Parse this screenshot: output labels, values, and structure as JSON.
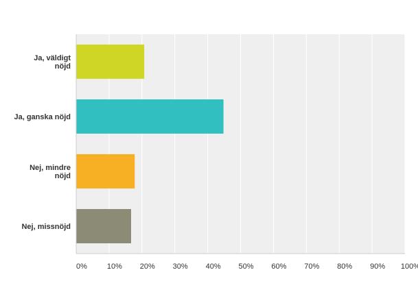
{
  "chart_data": {
    "type": "bar",
    "orientation": "horizontal",
    "title": "",
    "xlabel": "",
    "ylabel": "",
    "categories": [
      [
        "Ja, väldigt",
        "nöjd"
      ],
      [
        "Ja, ganska nöjd"
      ],
      [
        "Nej, mindre",
        "nöjd"
      ],
      [
        "Nej, missnöjd"
      ]
    ],
    "values": [
      20.7,
      44.8,
      17.8,
      16.7
    ],
    "colors": [
      "#cfd626",
      "#31bfc0",
      "#f7b023",
      "#8b8b76"
    ],
    "xlim": [
      0,
      100
    ],
    "ticks": [
      "0%",
      "10%",
      "20%",
      "30%",
      "40%",
      "50%",
      "60%",
      "70%",
      "80%",
      "90%",
      "100%"
    ],
    "tick_values": [
      0,
      10,
      20,
      30,
      40,
      50,
      60,
      70,
      80,
      90,
      100
    ],
    "grid": true,
    "background": "#efefef",
    "grid_color": "#ffffff"
  }
}
